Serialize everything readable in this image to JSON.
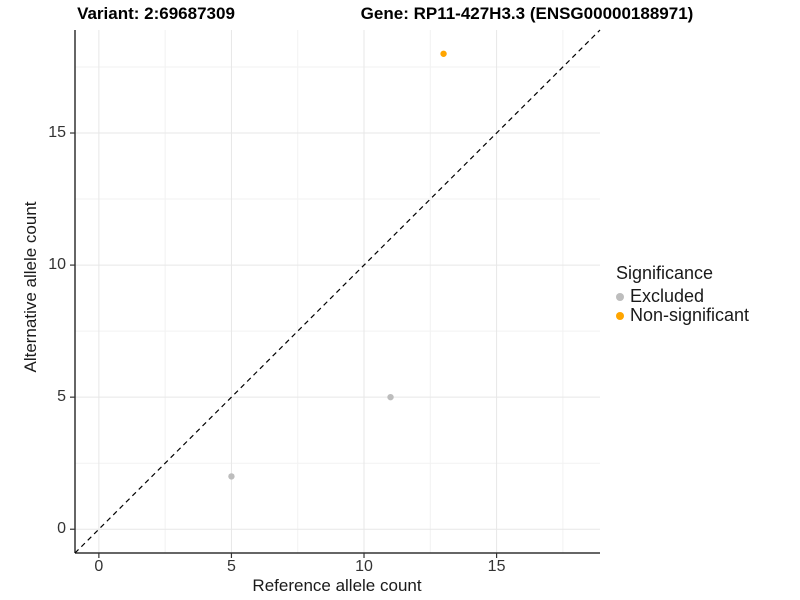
{
  "titles": {
    "variant": "Variant: 2:69687309",
    "gene": "Gene: RP11-427H3.3 (ENSG00000188971)"
  },
  "chart_data": {
    "type": "scatter",
    "xlabel": "Reference allele count",
    "ylabel": "Alternative allele count",
    "xlim": [
      -0.9,
      18.9
    ],
    "ylim": [
      -0.9,
      18.9
    ],
    "x_ticks": [
      0,
      5,
      10,
      15
    ],
    "y_ticks": [
      0,
      5,
      10,
      15
    ],
    "x_minor": [
      2.5,
      7.5,
      12.5,
      17.5
    ],
    "y_minor": [
      2.5,
      7.5,
      12.5,
      17.5
    ],
    "grid": "major and minor, light gray on white",
    "identity_line": {
      "style": "dashed",
      "color": "#000000",
      "slope": 1,
      "intercept": 0
    },
    "legend": {
      "title": "Significance",
      "position": "right"
    },
    "series": [
      {
        "name": "Excluded",
        "color": "#BDBDBD",
        "points": [
          [
            5,
            2
          ],
          [
            11,
            5
          ]
        ]
      },
      {
        "name": "Non-significant",
        "color": "#FFA500",
        "points": [
          [
            13,
            18
          ]
        ]
      }
    ]
  },
  "colors": {
    "grid_major": "#E7E7E7",
    "grid_minor": "#F2F2F2",
    "axis_line": "#333333",
    "tick_mark": "#333333",
    "identity_line": "#000000",
    "background": "#FFFFFF"
  }
}
